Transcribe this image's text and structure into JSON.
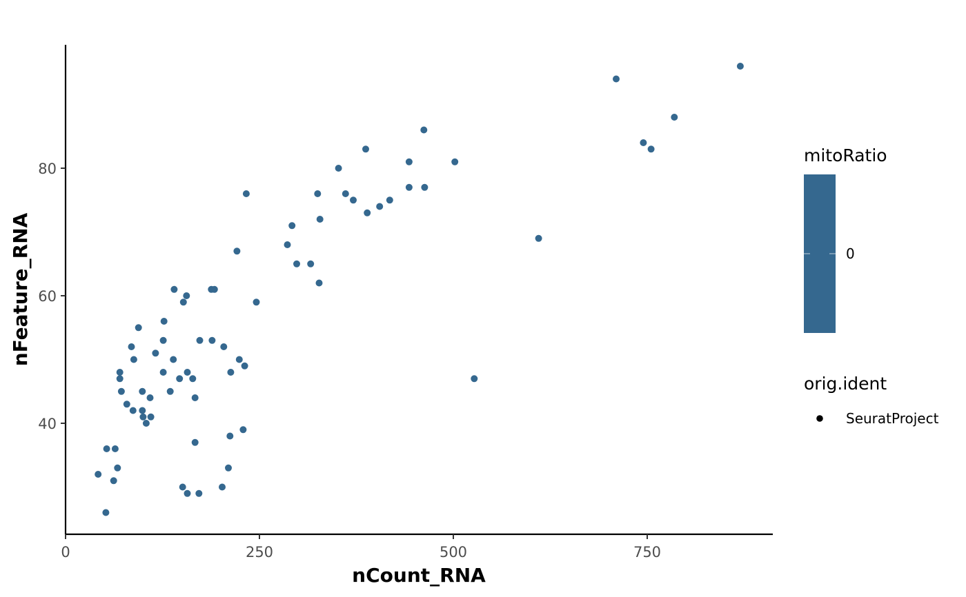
{
  "chart_data": {
    "type": "scatter",
    "title": "",
    "xlabel": "nCount_RNA",
    "ylabel": "nFeature_RNA",
    "xlim": [
      0,
      910
    ],
    "ylim": [
      23.5,
      99
    ],
    "x_ticks": [
      0,
      250,
      500,
      750
    ],
    "x_tick_labels": [
      "0",
      "250",
      "500",
      "750"
    ],
    "y_ticks": [
      40,
      60,
      80
    ],
    "y_tick_labels": [
      "40",
      "60",
      "80"
    ],
    "grid": false,
    "point_color": "#35688F",
    "series": [
      {
        "points": [
          [
            870,
            96
          ],
          [
            710,
            94
          ],
          [
            785,
            88
          ],
          [
            745,
            84
          ],
          [
            755,
            83
          ],
          [
            610,
            69
          ],
          [
            527,
            47
          ],
          [
            462,
            86
          ],
          [
            502,
            81
          ],
          [
            443,
            81
          ],
          [
            443,
            77
          ],
          [
            463,
            77
          ],
          [
            387,
            83
          ],
          [
            352,
            80
          ],
          [
            361,
            76
          ],
          [
            371,
            75
          ],
          [
            389,
            73
          ],
          [
            405,
            74
          ],
          [
            418,
            75
          ],
          [
            325,
            76
          ],
          [
            328,
            72
          ],
          [
            292,
            71
          ],
          [
            286,
            68
          ],
          [
            298,
            65
          ],
          [
            316,
            65
          ],
          [
            327,
            62
          ],
          [
            233,
            76
          ],
          [
            221,
            67
          ],
          [
            246,
            59
          ],
          [
            188,
            61
          ],
          [
            192,
            61
          ],
          [
            140,
            61
          ],
          [
            156,
            60
          ],
          [
            152,
            59
          ],
          [
            127,
            56
          ],
          [
            126,
            53
          ],
          [
            94,
            55
          ],
          [
            85,
            52
          ],
          [
            116,
            51
          ],
          [
            88,
            50
          ],
          [
            139,
            50
          ],
          [
            173,
            53
          ],
          [
            189,
            53
          ],
          [
            204,
            52
          ],
          [
            224,
            50
          ],
          [
            231,
            49
          ],
          [
            213,
            48
          ],
          [
            70,
            48
          ],
          [
            70,
            47
          ],
          [
            126,
            48
          ],
          [
            157,
            48
          ],
          [
            147,
            47
          ],
          [
            164,
            47
          ],
          [
            72,
            45
          ],
          [
            99,
            45
          ],
          [
            135,
            45
          ],
          [
            109,
            44
          ],
          [
            167,
            44
          ],
          [
            79,
            43
          ],
          [
            87,
            42
          ],
          [
            99,
            42
          ],
          [
            100,
            41
          ],
          [
            110,
            41
          ],
          [
            104,
            40
          ],
          [
            229,
            39
          ],
          [
            212,
            38
          ],
          [
            167,
            37
          ],
          [
            53,
            36
          ],
          [
            64,
            36
          ],
          [
            67,
            33
          ],
          [
            210,
            33
          ],
          [
            42,
            32
          ],
          [
            62,
            31
          ],
          [
            151,
            30
          ],
          [
            202,
            30
          ],
          [
            157,
            29
          ],
          [
            172,
            29
          ],
          [
            52,
            26
          ]
        ]
      }
    ],
    "legends": [
      {
        "title": "mitoRatio",
        "kind": "colorbar",
        "color": "#35688F",
        "tick_labels": [
          "0"
        ]
      },
      {
        "title": "orig.ident",
        "kind": "shape",
        "entries": [
          "SeuratProject"
        ],
        "marker_color": "#000000"
      }
    ],
    "legend_position": "right"
  }
}
